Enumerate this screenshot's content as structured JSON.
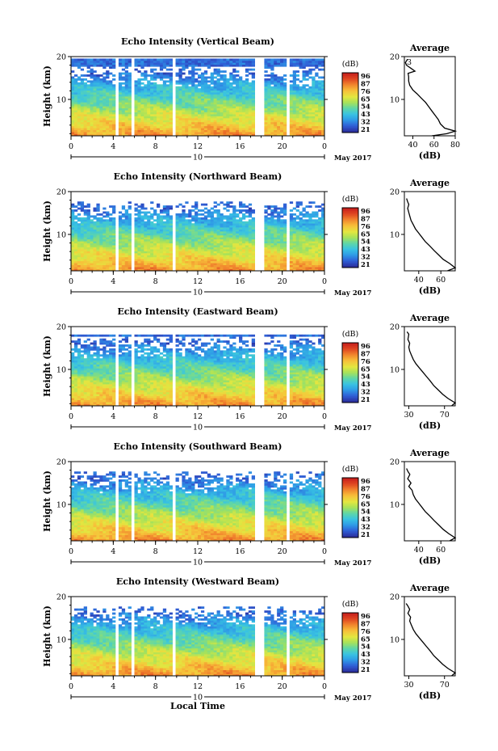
{
  "figure": {
    "x_axis_label": "Local Time",
    "date_label": "May 2017",
    "colorbar_unit": "(dB)",
    "colorbar_ticks": [
      "96",
      "87",
      "76",
      "65",
      "54",
      "43",
      "32",
      "21"
    ],
    "colorscale": [
      "#2b2f9e",
      "#2f5fd6",
      "#2f9ae6",
      "#38c3e2",
      "#5fd6a8",
      "#a6e25a",
      "#e3e640",
      "#f7c23a",
      "#f28a2e",
      "#e04a22",
      "#c8201c"
    ],
    "x_ticks": [
      "0",
      "4",
      "8",
      "12",
      "16",
      "20",
      "0"
    ],
    "day_marker": "10",
    "y_ticks": [
      "20",
      "10"
    ],
    "y_label": "Height (km)",
    "profile_title": "Average",
    "profile_xlabel": "(dB)",
    "gap_hours": [
      4.3,
      5.8,
      9.8,
      17.7,
      18.2,
      20.5
    ]
  },
  "chart_data": [
    {
      "type": "heatmap",
      "title": "Echo Intensity (Vertical Beam)",
      "x_range_hours": [
        0,
        24
      ],
      "ylim_km": [
        1.5,
        20
      ],
      "value_range_db": [
        21,
        96
      ],
      "top_km": 19.5,
      "profile": {
        "xticks": [
          "40",
          "60",
          "80"
        ],
        "xlim": [
          32,
          80
        ],
        "extra_label": "3",
        "points": [
          [
            58,
            1.5
          ],
          [
            72,
            2.0
          ],
          [
            80,
            2.6
          ],
          [
            70,
            3.3
          ],
          [
            66,
            4.3
          ],
          [
            64,
            5.3
          ],
          [
            61,
            6.3
          ],
          [
            58,
            7.3
          ],
          [
            55,
            8.3
          ],
          [
            52,
            9.3
          ],
          [
            48,
            10.3
          ],
          [
            44,
            11.3
          ],
          [
            40,
            12.2
          ],
          [
            37,
            13.3
          ],
          [
            36,
            14.3
          ],
          [
            36,
            15.3
          ],
          [
            35.5,
            16.1
          ],
          [
            42,
            16.6
          ],
          [
            38,
            17.3
          ],
          [
            34,
            18.0
          ],
          [
            33,
            18.6
          ],
          [
            35,
            19.4
          ]
        ]
      }
    },
    {
      "type": "heatmap",
      "title": "Echo Intensity (Northward Beam)",
      "x_range_hours": [
        0,
        24
      ],
      "ylim_km": [
        1.5,
        20
      ],
      "value_range_db": [
        21,
        96
      ],
      "top_km": 17.8,
      "profile": {
        "xticks": [
          "40",
          "60"
        ],
        "xlim": [
          27,
          73
        ],
        "extra_label": "",
        "points": [
          [
            66,
            1.5
          ],
          [
            73,
            2.2
          ],
          [
            68,
            3.2
          ],
          [
            62,
            4.2
          ],
          [
            58,
            5.2
          ],
          [
            54,
            6.2
          ],
          [
            50,
            7.3
          ],
          [
            46,
            8.3
          ],
          [
            43,
            9.3
          ],
          [
            40,
            10.3
          ],
          [
            37,
            11.3
          ],
          [
            35,
            12.3
          ],
          [
            33,
            13.3
          ],
          [
            32,
            14.2
          ],
          [
            31,
            15.1
          ],
          [
            30,
            16.1
          ],
          [
            31,
            17.0
          ],
          [
            30,
            17.6
          ],
          [
            29,
            18.4
          ]
        ]
      }
    },
    {
      "type": "heatmap",
      "title": "Echo Intensity (Eastward Beam)",
      "x_range_hours": [
        0,
        24
      ],
      "ylim_km": [
        1.5,
        20
      ],
      "value_range_db": [
        21,
        96
      ],
      "top_km": 18.3,
      "profile": {
        "xticks": [
          "30",
          "70"
        ],
        "xlim": [
          25,
          82
        ],
        "extra_label": "",
        "points": [
          [
            78,
            1.5
          ],
          [
            82,
            2.2
          ],
          [
            74,
            3.2
          ],
          [
            68,
            4.2
          ],
          [
            63,
            5.2
          ],
          [
            58,
            6.2
          ],
          [
            54,
            7.3
          ],
          [
            50,
            8.3
          ],
          [
            46,
            9.3
          ],
          [
            42,
            10.3
          ],
          [
            38,
            11.3
          ],
          [
            35,
            12.3
          ],
          [
            33,
            13.3
          ],
          [
            31,
            14.3
          ],
          [
            30,
            15.2
          ],
          [
            31,
            16.1
          ],
          [
            29,
            17.0
          ],
          [
            30,
            18.2
          ],
          [
            28,
            18.8
          ]
        ]
      }
    },
    {
      "type": "heatmap",
      "title": "Echo Intensity (Southward Beam)",
      "x_range_hours": [
        0,
        24
      ],
      "ylim_km": [
        1.5,
        20
      ],
      "value_range_db": [
        21,
        96
      ],
      "top_km": 17.8,
      "profile": {
        "xticks": [
          "40",
          "60"
        ],
        "xlim": [
          27,
          73
        ],
        "extra_label": "",
        "points": [
          [
            68,
            1.5
          ],
          [
            73,
            2.2
          ],
          [
            67,
            3.2
          ],
          [
            62,
            4.2
          ],
          [
            58,
            5.2
          ],
          [
            54,
            6.2
          ],
          [
            50,
            7.3
          ],
          [
            46,
            8.3
          ],
          [
            43,
            9.3
          ],
          [
            40,
            10.3
          ],
          [
            37,
            11.3
          ],
          [
            35,
            12.3
          ],
          [
            34,
            13.3
          ],
          [
            31,
            14.2
          ],
          [
            33,
            15.0
          ],
          [
            30,
            16.0
          ],
          [
            32,
            17.0
          ],
          [
            30,
            17.8
          ],
          [
            29,
            18.4
          ]
        ]
      }
    },
    {
      "type": "heatmap",
      "title": "Echo Intensity (Westward Beam)",
      "x_range_hours": [
        0,
        24
      ],
      "ylim_km": [
        1.5,
        20
      ],
      "value_range_db": [
        21,
        96
      ],
      "top_km": 17.8,
      "profile": {
        "xticks": [
          "30",
          "70"
        ],
        "xlim": [
          25,
          82
        ],
        "extra_label": "",
        "points": [
          [
            78,
            1.5
          ],
          [
            82,
            2.2
          ],
          [
            74,
            3.2
          ],
          [
            68,
            4.2
          ],
          [
            63,
            5.2
          ],
          [
            58,
            6.2
          ],
          [
            54,
            7.3
          ],
          [
            50,
            8.3
          ],
          [
            46,
            9.3
          ],
          [
            42,
            10.3
          ],
          [
            38,
            11.3
          ],
          [
            35,
            12.3
          ],
          [
            33,
            13.3
          ],
          [
            31,
            14.3
          ],
          [
            32,
            15.2
          ],
          [
            29,
            16.1
          ],
          [
            31,
            17.0
          ],
          [
            29,
            17.8
          ],
          [
            27,
            18.4
          ]
        ]
      }
    }
  ]
}
